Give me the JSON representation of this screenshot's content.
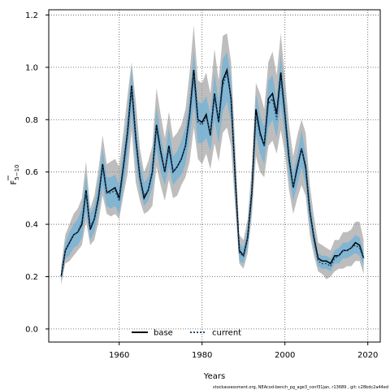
{
  "chart_data": {
    "type": "line",
    "xlabel": "Years",
    "ylabel_main": "F",
    "ylabel_sub": "5−10",
    "xlim": [
      1943,
      2023
    ],
    "ylim": [
      -0.05,
      1.22
    ],
    "xticks": [
      1960,
      1980,
      2000,
      2020
    ],
    "yticks": [
      0.0,
      0.2,
      0.4,
      0.6,
      0.8,
      1.0,
      1.2
    ],
    "grid": true,
    "legend_position": "bottom-center",
    "footer": "stockassessment.org, NEAcod-bench_pg_age3_conf31jan, r13689 , git: c28bdc2a44ed",
    "series": [
      {
        "name": "base",
        "line_color": "#000000",
        "line_style": "solid",
        "band_color": "#999999",
        "x": [
          1946,
          1947,
          1948,
          1949,
          1950,
          1951,
          1952,
          1953,
          1954,
          1955,
          1956,
          1957,
          1958,
          1959,
          1960,
          1961,
          1962,
          1963,
          1964,
          1965,
          1966,
          1967,
          1968,
          1969,
          1970,
          1971,
          1972,
          1973,
          1974,
          1975,
          1976,
          1977,
          1978,
          1979,
          1980,
          1981,
          1982,
          1983,
          1984,
          1985,
          1986,
          1987,
          1988,
          1989,
          1990,
          1991,
          1992,
          1993,
          1994,
          1995,
          1996,
          1997,
          1998,
          1999,
          2000,
          2001,
          2002,
          2003,
          2004,
          2005,
          2006,
          2007,
          2008,
          2009,
          2010,
          2011,
          2012,
          2013,
          2014,
          2015,
          2016,
          2017,
          2018,
          2019
        ],
        "y": [
          0.2,
          0.3,
          0.33,
          0.36,
          0.37,
          0.4,
          0.53,
          0.38,
          0.42,
          0.5,
          0.63,
          0.52,
          0.53,
          0.54,
          0.5,
          0.62,
          0.75,
          0.93,
          0.73,
          0.58,
          0.5,
          0.53,
          0.6,
          0.78,
          0.68,
          0.6,
          0.7,
          0.6,
          0.62,
          0.65,
          0.7,
          0.82,
          0.99,
          0.8,
          0.79,
          0.82,
          0.74,
          0.9,
          0.79,
          0.95,
          0.99,
          0.88,
          0.58,
          0.3,
          0.28,
          0.35,
          0.52,
          0.84,
          0.75,
          0.7,
          0.88,
          0.9,
          0.82,
          0.98,
          0.82,
          0.65,
          0.54,
          0.62,
          0.69,
          0.62,
          0.45,
          0.35,
          0.27,
          0.26,
          0.26,
          0.25,
          0.28,
          0.28,
          0.3,
          0.3,
          0.31,
          0.33,
          0.32,
          0.27
        ],
        "lower": [
          0.17,
          0.25,
          0.26,
          0.28,
          0.3,
          0.32,
          0.41,
          0.32,
          0.34,
          0.41,
          0.51,
          0.44,
          0.43,
          0.44,
          0.42,
          0.51,
          0.59,
          0.76,
          0.56,
          0.49,
          0.44,
          0.45,
          0.47,
          0.62,
          0.55,
          0.49,
          0.57,
          0.5,
          0.51,
          0.55,
          0.58,
          0.64,
          0.77,
          0.65,
          0.63,
          0.67,
          0.61,
          0.71,
          0.64,
          0.75,
          0.77,
          0.7,
          0.46,
          0.25,
          0.23,
          0.29,
          0.43,
          0.66,
          0.6,
          0.58,
          0.7,
          0.72,
          0.67,
          0.76,
          0.67,
          0.53,
          0.44,
          0.5,
          0.55,
          0.51,
          0.36,
          0.28,
          0.22,
          0.21,
          0.19,
          0.2,
          0.22,
          0.23,
          0.23,
          0.24,
          0.24,
          0.26,
          0.26,
          0.21
        ],
        "upper": [
          0.24,
          0.36,
          0.4,
          0.44,
          0.46,
          0.5,
          0.64,
          0.46,
          0.51,
          0.61,
          0.74,
          0.63,
          0.64,
          0.65,
          0.62,
          0.75,
          0.89,
          1.02,
          0.87,
          0.69,
          0.6,
          0.64,
          0.7,
          0.92,
          0.82,
          0.73,
          0.83,
          0.73,
          0.75,
          0.78,
          0.84,
          0.98,
          1.16,
          0.95,
          0.94,
          0.98,
          0.9,
          1.07,
          0.95,
          1.12,
          1.13,
          1.02,
          0.7,
          0.36,
          0.34,
          0.42,
          0.62,
          0.94,
          0.9,
          0.84,
          1.02,
          1.06,
          0.97,
          1.13,
          0.96,
          0.78,
          0.66,
          0.74,
          0.8,
          0.75,
          0.55,
          0.43,
          0.33,
          0.32,
          0.31,
          0.3,
          0.34,
          0.34,
          0.37,
          0.37,
          0.38,
          0.41,
          0.41,
          0.34
        ]
      },
      {
        "name": "current",
        "line_color": "#1f4e79",
        "line_style": "dotted",
        "band_color": "#6fb3d9",
        "x": [
          1946,
          1947,
          1948,
          1949,
          1950,
          1951,
          1952,
          1953,
          1954,
          1955,
          1956,
          1957,
          1958,
          1959,
          1960,
          1961,
          1962,
          1963,
          1964,
          1965,
          1966,
          1967,
          1968,
          1969,
          1970,
          1971,
          1972,
          1973,
          1974,
          1975,
          1976,
          1977,
          1978,
          1979,
          1980,
          1981,
          1982,
          1983,
          1984,
          1985,
          1986,
          1987,
          1988,
          1989,
          1990,
          1991,
          1992,
          1993,
          1994,
          1995,
          1996,
          1997,
          1998,
          1999,
          2000,
          2001,
          2002,
          2003,
          2004,
          2005,
          2006,
          2007,
          2008,
          2009,
          2010,
          2011,
          2012,
          2013,
          2014,
          2015,
          2016,
          2017,
          2018,
          2019
        ],
        "y": [
          0.2,
          0.3,
          0.33,
          0.36,
          0.37,
          0.41,
          0.52,
          0.39,
          0.42,
          0.51,
          0.62,
          0.52,
          0.52,
          0.53,
          0.49,
          0.61,
          0.74,
          0.92,
          0.72,
          0.58,
          0.51,
          0.53,
          0.6,
          0.77,
          0.67,
          0.6,
          0.69,
          0.6,
          0.62,
          0.65,
          0.7,
          0.81,
          0.97,
          0.79,
          0.78,
          0.81,
          0.75,
          0.89,
          0.79,
          0.93,
          0.98,
          0.88,
          0.57,
          0.29,
          0.28,
          0.35,
          0.51,
          0.82,
          0.74,
          0.7,
          0.86,
          0.88,
          0.8,
          0.96,
          0.81,
          0.64,
          0.54,
          0.61,
          0.69,
          0.61,
          0.45,
          0.34,
          0.26,
          0.25,
          0.25,
          0.24,
          0.27,
          0.28,
          0.3,
          0.3,
          0.31,
          0.32,
          0.31,
          0.27
        ],
        "lower": [
          0.18,
          0.27,
          0.28,
          0.31,
          0.32,
          0.35,
          0.45,
          0.34,
          0.37,
          0.45,
          0.55,
          0.47,
          0.46,
          0.47,
          0.44,
          0.54,
          0.66,
          0.83,
          0.64,
          0.53,
          0.47,
          0.49,
          0.54,
          0.69,
          0.6,
          0.55,
          0.62,
          0.55,
          0.57,
          0.59,
          0.63,
          0.73,
          0.86,
          0.71,
          0.71,
          0.73,
          0.68,
          0.8,
          0.71,
          0.83,
          0.87,
          0.79,
          0.51,
          0.26,
          0.25,
          0.31,
          0.46,
          0.74,
          0.67,
          0.63,
          0.77,
          0.8,
          0.73,
          0.86,
          0.73,
          0.58,
          0.49,
          0.55,
          0.62,
          0.55,
          0.4,
          0.31,
          0.24,
          0.23,
          0.23,
          0.22,
          0.25,
          0.25,
          0.27,
          0.27,
          0.28,
          0.29,
          0.28,
          0.24
        ],
        "upper": [
          0.22,
          0.33,
          0.37,
          0.4,
          0.42,
          0.46,
          0.59,
          0.44,
          0.47,
          0.57,
          0.69,
          0.58,
          0.58,
          0.59,
          0.55,
          0.68,
          0.82,
          1.0,
          0.8,
          0.64,
          0.56,
          0.58,
          0.66,
          0.85,
          0.74,
          0.66,
          0.77,
          0.66,
          0.68,
          0.72,
          0.77,
          0.89,
          1.06,
          0.87,
          0.86,
          0.89,
          0.82,
          0.98,
          0.87,
          1.03,
          1.06,
          0.96,
          0.63,
          0.33,
          0.31,
          0.39,
          0.57,
          0.9,
          0.82,
          0.77,
          0.95,
          0.97,
          0.88,
          1.05,
          0.89,
          0.71,
          0.6,
          0.67,
          0.76,
          0.67,
          0.5,
          0.38,
          0.29,
          0.28,
          0.28,
          0.27,
          0.3,
          0.31,
          0.33,
          0.33,
          0.34,
          0.36,
          0.35,
          0.3
        ]
      }
    ]
  }
}
